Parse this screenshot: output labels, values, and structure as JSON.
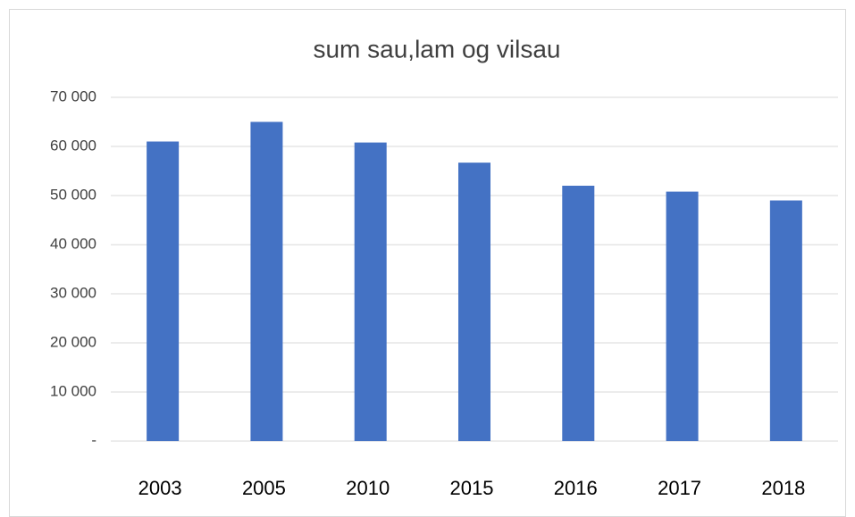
{
  "chart_data": {
    "type": "bar",
    "title": "sum sau,lam og vilsau",
    "categories": [
      "2003",
      "2005",
      "2010",
      "2015",
      "2016",
      "2017",
      "2018"
    ],
    "values": [
      61000,
      65000,
      60800,
      56700,
      52000,
      50800,
      49000
    ],
    "color": "#4472c4",
    "ylim": [
      0,
      70000
    ],
    "yticks": [
      {
        "value": 0,
        "label": "-"
      },
      {
        "value": 10000,
        "label": "10 000"
      },
      {
        "value": 20000,
        "label": "20 000"
      },
      {
        "value": 30000,
        "label": "30 000"
      },
      {
        "value": 40000,
        "label": "40 000"
      },
      {
        "value": 50000,
        "label": "50 000"
      },
      {
        "value": 60000,
        "label": "60 000"
      },
      {
        "value": 70000,
        "label": "70 000"
      }
    ],
    "grid": true
  }
}
